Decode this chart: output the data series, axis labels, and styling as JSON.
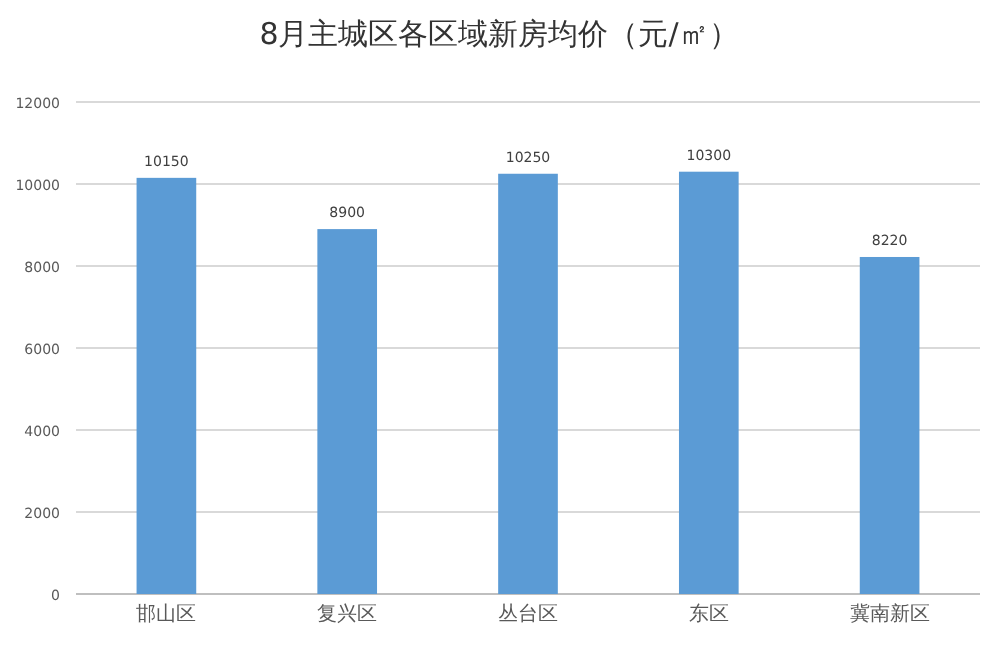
{
  "chart_data": {
    "type": "bar",
    "title": "8月主城区各区域新房均价（元/㎡）",
    "categories": [
      "邯山区",
      "复兴区",
      "丛台区",
      "东区",
      "冀南新区"
    ],
    "values": [
      10150,
      8900,
      10250,
      10300,
      8220
    ],
    "color": "#5b9bd5",
    "ylim": [
      0,
      12000
    ],
    "yticks": [
      0,
      2000,
      4000,
      6000,
      8000,
      10000,
      12000
    ],
    "grid": "y",
    "data_labels": true
  }
}
